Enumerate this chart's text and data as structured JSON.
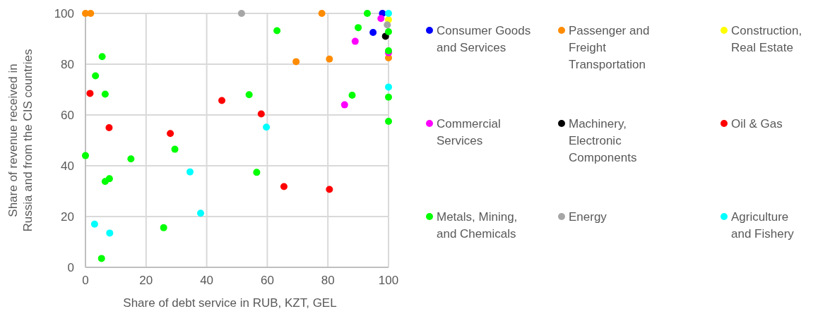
{
  "chart_data": {
    "type": "scatter",
    "xlabel": "Share of debt service in RUB, KZT, GEL",
    "ylabel": "Share of revenue received in Russia and from the CIS countries",
    "xlim": [
      0,
      100
    ],
    "ylim": [
      0,
      100
    ],
    "xticks": [
      0,
      20,
      40,
      60,
      80,
      100
    ],
    "yticks": [
      0,
      20,
      40,
      60,
      80,
      100
    ],
    "grid": true,
    "legend": "right",
    "marker": "circle",
    "series": [
      {
        "name": "Consumer Goods and Services",
        "color": "#0000ff",
        "x": [
          98,
          94.9
        ],
        "values": [
          100,
          92.5
        ]
      },
      {
        "name": "Passenger and Freight Transportation",
        "color": "#ff8c00",
        "x": [
          0,
          1.7,
          78,
          69.5,
          80.5,
          100
        ],
        "values": [
          100,
          100,
          100,
          81,
          82,
          82.5
        ]
      },
      {
        "name": "Construction, Real Estate",
        "color": "#ffff00",
        "x": [
          100
        ],
        "values": [
          97.5
        ]
      },
      {
        "name": "Commercial Services",
        "color": "#ff00ff",
        "x": [
          97.5,
          89,
          85.5,
          100
        ],
        "values": [
          98,
          89,
          64,
          84.5
        ]
      },
      {
        "name": "Machinery, Electronic Components",
        "color": "#000000",
        "x": [
          99
        ],
        "values": [
          91
        ]
      },
      {
        "name": "Oil & Gas",
        "color": "#ff0000",
        "x": [
          1.5,
          7.8,
          28,
          45,
          58,
          65.5,
          80.5
        ],
        "values": [
          68.5,
          55,
          52.7,
          65.7,
          60.4,
          31.8,
          30.7
        ]
      },
      {
        "name": "Metals, Mining, and Chemicals",
        "color": "#00ff00",
        "x": [
          5.5,
          3.3,
          6.5,
          0,
          15,
          6.5,
          7.9,
          29.5,
          25.8,
          5.3,
          54,
          56.5,
          63.2,
          93,
          90,
          88,
          100,
          100,
          100,
          100
        ],
        "values": [
          83,
          75.4,
          68.2,
          44,
          42.7,
          33.8,
          34.9,
          46.5,
          15.6,
          3.5,
          68,
          37.4,
          93.2,
          100,
          94.4,
          67.8,
          85.3,
          67,
          57.5,
          92.8
        ]
      },
      {
        "name": "Energy",
        "color": "#a6a6a6",
        "x": [
          51.5,
          99.6
        ],
        "values": [
          100,
          95.5
        ]
      },
      {
        "name": "Agriculture and Fishery",
        "color": "#00ffff",
        "x": [
          3,
          8,
          34.5,
          38,
          59.7,
          100,
          100
        ],
        "values": [
          17,
          13.5,
          37.6,
          21.3,
          55.2,
          71,
          100
        ]
      }
    ]
  }
}
